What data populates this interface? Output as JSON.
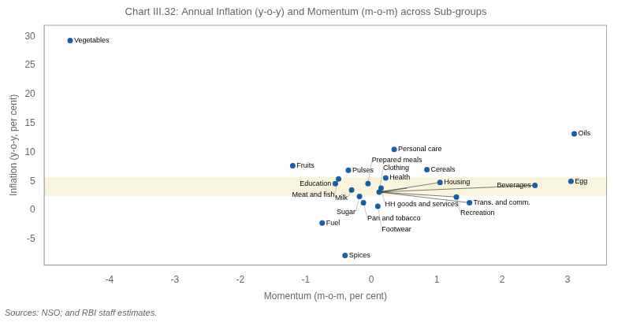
{
  "chart_data": {
    "type": "scatter",
    "title": "Chart III.32: Annual Inflation (y-o-y) and Momentum (m-o-m) across Sub-groups",
    "xlabel": "Momentum (m-o-m, per cent)",
    "ylabel": "Inflation (y-o-y, per cent)",
    "source": "Sources: NSO; and RBI staff estimates.",
    "xlim": [
      -5.0,
      3.6
    ],
    "ylim": [
      -9.5,
      32
    ],
    "xticks": [
      -4,
      -3,
      -2,
      -1,
      0,
      1,
      2,
      3
    ],
    "yticks": [
      -5,
      0,
      5,
      10,
      15,
      20,
      25,
      30
    ],
    "grid": false,
    "color": "#1a5fa8",
    "highlight_band": {
      "y": [
        2.5,
        5.7
      ],
      "color": "#f8f5dc"
    },
    "points": [
      {
        "label": "Vegetables",
        "x": -4.6,
        "y": 29.3
      },
      {
        "label": "Fruits",
        "x": -1.2,
        "y": 7.7
      },
      {
        "label": "Pulses",
        "x": -0.35,
        "y": 6.9
      },
      {
        "label": "Meat and fish",
        "x": -0.5,
        "y": 5.4
      },
      {
        "label": "Education",
        "x": -0.55,
        "y": 4.6
      },
      {
        "label": "Milk",
        "x": -0.3,
        "y": 3.5
      },
      {
        "label": "Sugar",
        "x": -0.18,
        "y": 2.4
      },
      {
        "label": "Pan and tobacco",
        "x": -0.12,
        "y": 1.3
      },
      {
        "label": "Fuel",
        "x": -0.75,
        "y": -2.2
      },
      {
        "label": "Spices",
        "x": -0.4,
        "y": -7.8
      },
      {
        "label": "Personal care",
        "x": 0.35,
        "y": 10.5
      },
      {
        "label": "Cereals",
        "x": 0.85,
        "y": 7.0
      },
      {
        "label": "Health",
        "x": 0.22,
        "y": 5.6
      },
      {
        "label": "Prepared meals",
        "x": -0.05,
        "y": 4.6
      },
      {
        "label": "HH goods and services",
        "x": 0.15,
        "y": 3.8
      },
      {
        "label": "Clothing",
        "x": 0.12,
        "y": 3.15
      },
      {
        "label": "Footwear",
        "x": 0.1,
        "y": 0.7
      },
      {
        "label": "Housing",
        "x": 1.05,
        "y": 4.8
      },
      {
        "label": "Recreation",
        "x": 1.3,
        "y": 2.3
      },
      {
        "label": "Trans. and comm.",
        "x": 1.5,
        "y": 1.3
      },
      {
        "label": "Beverages",
        "x": 2.5,
        "y": 4.3
      },
      {
        "label": "Egg",
        "x": 3.05,
        "y": 5.0
      },
      {
        "label": "Oils",
        "x": 3.1,
        "y": 13.2
      }
    ],
    "connector_lines": [
      {
        "x": [
          0.12,
          1.05
        ],
        "y": [
          3.15,
          4.8
        ]
      },
      {
        "x": [
          0.12,
          0.55
        ],
        "y": [
          3.15,
          3.8
        ]
      },
      {
        "x": [
          0.12,
          1.3
        ],
        "y": [
          3.15,
          2.3
        ]
      },
      {
        "x": [
          0.12,
          1.5
        ],
        "y": [
          3.15,
          1.3
        ]
      },
      {
        "x": [
          0.12,
          2.5
        ],
        "y": [
          3.15,
          4.3
        ]
      }
    ]
  }
}
